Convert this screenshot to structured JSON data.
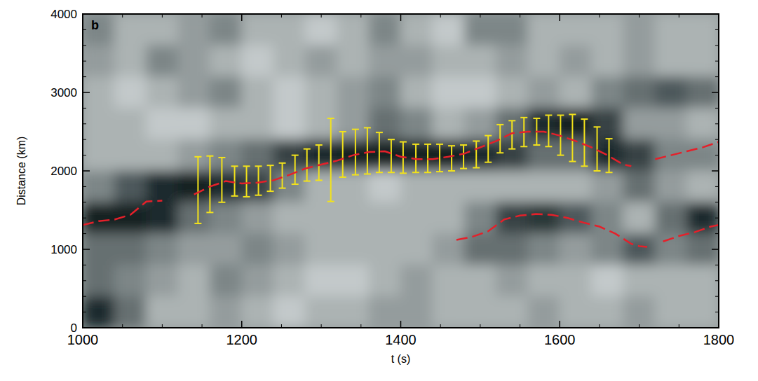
{
  "chart_data": {
    "type": "line",
    "panel_label": "b",
    "x_label": "t (s)",
    "y_label": "Distance (km)",
    "xlim": [
      1000,
      1800
    ],
    "ylim": [
      0,
      4000
    ],
    "xticks": [
      1000,
      1200,
      1400,
      1600,
      1800
    ],
    "yticks": [
      0,
      1000,
      2000,
      3000,
      4000
    ],
    "heatmap": {
      "cells": [
        [
          0.5,
          0.3,
          0.3,
          0.4,
          0.5,
          0.3,
          0.3,
          0.2,
          0.3,
          0.5,
          0.3,
          0.2,
          0.5,
          0.5,
          0.3,
          0.3,
          0.3,
          0.4,
          0.3,
          0.3
        ],
        [
          0.4,
          0.3,
          0.5,
          0.4,
          0.3,
          0.2,
          0.3,
          0.4,
          0.3,
          0.4,
          0.4,
          0.3,
          0.3,
          0.4,
          0.3,
          0.4,
          0.3,
          0.4,
          0.3,
          0.3
        ],
        [
          0.3,
          0.2,
          0.3,
          0.4,
          0.5,
          0.3,
          0.2,
          0.3,
          0.4,
          0.5,
          0.3,
          0.2,
          0.2,
          0.3,
          0.4,
          0.3,
          0.5,
          0.6,
          0.7,
          0.6
        ],
        [
          0.3,
          0.3,
          0.2,
          0.2,
          0.3,
          0.3,
          0.2,
          0.3,
          0.4,
          0.6,
          0.5,
          0.3,
          0.4,
          0.6,
          0.9,
          0.95,
          0.8,
          0.4,
          0.4,
          0.3
        ],
        [
          0.3,
          0.3,
          0.3,
          0.4,
          0.5,
          0.6,
          0.8,
          0.9,
          0.95,
          0.95,
          0.95,
          0.95,
          0.9,
          0.8,
          0.6,
          0.6,
          0.9,
          0.8,
          0.5,
          0.5
        ],
        [
          0.5,
          0.7,
          0.9,
          0.95,
          0.9,
          0.8,
          0.5,
          0.3,
          0.3,
          0.2,
          0.3,
          0.3,
          0.3,
          0.3,
          0.3,
          0.3,
          0.4,
          0.6,
          0.4,
          0.3
        ],
        [
          0.95,
          0.95,
          0.9,
          0.6,
          0.5,
          0.4,
          0.3,
          0.3,
          0.3,
          0.3,
          0.3,
          0.3,
          0.5,
          0.8,
          0.85,
          0.7,
          0.5,
          0.3,
          0.6,
          0.9
        ],
        [
          0.6,
          0.6,
          0.5,
          0.4,
          0.4,
          0.5,
          0.4,
          0.3,
          0.3,
          0.3,
          0.3,
          0.4,
          0.6,
          0.6,
          0.5,
          0.4,
          0.5,
          0.7,
          0.5,
          0.6
        ],
        [
          0.6,
          0.5,
          0.4,
          0.3,
          0.5,
          0.4,
          0.3,
          0.2,
          0.2,
          0.3,
          0.4,
          0.3,
          0.3,
          0.4,
          0.3,
          0.3,
          0.2,
          0.3,
          0.3,
          0.3
        ],
        [
          0.9,
          0.6,
          0.3,
          0.3,
          0.4,
          0.3,
          0.2,
          0.3,
          0.3,
          0.4,
          0.4,
          0.3,
          0.3,
          0.3,
          0.4,
          0.3,
          0.3,
          0.4,
          0.3,
          0.3
        ]
      ]
    },
    "series": [
      {
        "type": "line",
        "color": "#e5202a",
        "line_style": "dashed",
        "x": [
          1000,
          1020,
          1040,
          1060,
          1080,
          1100,
          1120,
          1140,
          1160,
          1180,
          1200,
          1220,
          1240,
          1260,
          1280,
          1300,
          1320,
          1340,
          1360,
          1380,
          1400,
          1420,
          1440,
          1460,
          1480,
          1500,
          1520,
          1540,
          1560,
          1580,
          1600,
          1620,
          1640,
          1660,
          1680,
          1690,
          1705,
          1720,
          1740,
          1760,
          1780,
          1800
        ],
        "values": [
          1310,
          1360,
          1380,
          1440,
          1610,
          1620,
          null,
          1700,
          1800,
          1870,
          1840,
          1850,
          1880,
          1950,
          2030,
          2080,
          2130,
          2200,
          2240,
          2250,
          2180,
          2150,
          2150,
          2180,
          2220,
          2300,
          2380,
          2480,
          2500,
          2500,
          2450,
          2380,
          2300,
          2200,
          2080,
          2060,
          null,
          2150,
          2200,
          2250,
          2300,
          2370
        ]
      },
      {
        "type": "line",
        "color": "#e5202a",
        "line_style": "dashed",
        "x": [
          1470,
          1490,
          1510,
          1530,
          1550,
          1570,
          1590,
          1610,
          1630,
          1650,
          1670,
          1690,
          1700,
          1710,
          1720,
          1730,
          1750,
          1770,
          1790,
          1800
        ],
        "values": [
          1120,
          1160,
          1230,
          1380,
          1430,
          1450,
          1440,
          1400,
          1340,
          1290,
          1200,
          1070,
          1040,
          1030,
          null,
          1100,
          1170,
          1220,
          1290,
          1310
        ]
      },
      {
        "type": "errorbar",
        "color": "#f2e21b",
        "x": [
          1145,
          1160,
          1175,
          1191,
          1206,
          1221,
          1236,
          1251,
          1267,
          1282,
          1297,
          1312,
          1327,
          1343,
          1358,
          1373,
          1388,
          1403,
          1419,
          1434,
          1449,
          1464,
          1479,
          1495,
          1510,
          1525,
          1540,
          1555,
          1571,
          1586,
          1601,
          1616,
          1631,
          1647,
          1662
        ],
        "values": [
          1755,
          1830,
          1885,
          1870,
          1865,
          1875,
          1905,
          1940,
          2015,
          2075,
          2105,
          2140,
          2210,
          2240,
          2255,
          2235,
          2190,
          2170,
          2160,
          2160,
          2165,
          2160,
          2180,
          2210,
          2280,
          2410,
          2460,
          2495,
          2500,
          2510,
          2455,
          2420,
          2360,
          2280,
          2195
        ],
        "errors": [
          425,
          360,
          285,
          190,
          195,
          185,
          165,
          160,
          185,
          205,
          225,
          530,
          290,
          290,
          295,
          255,
          210,
          200,
          180,
          180,
          175,
          160,
          150,
          170,
          170,
          180,
          180,
          185,
          170,
          200,
          255,
          300,
          300,
          280,
          215
        ]
      }
    ]
  }
}
